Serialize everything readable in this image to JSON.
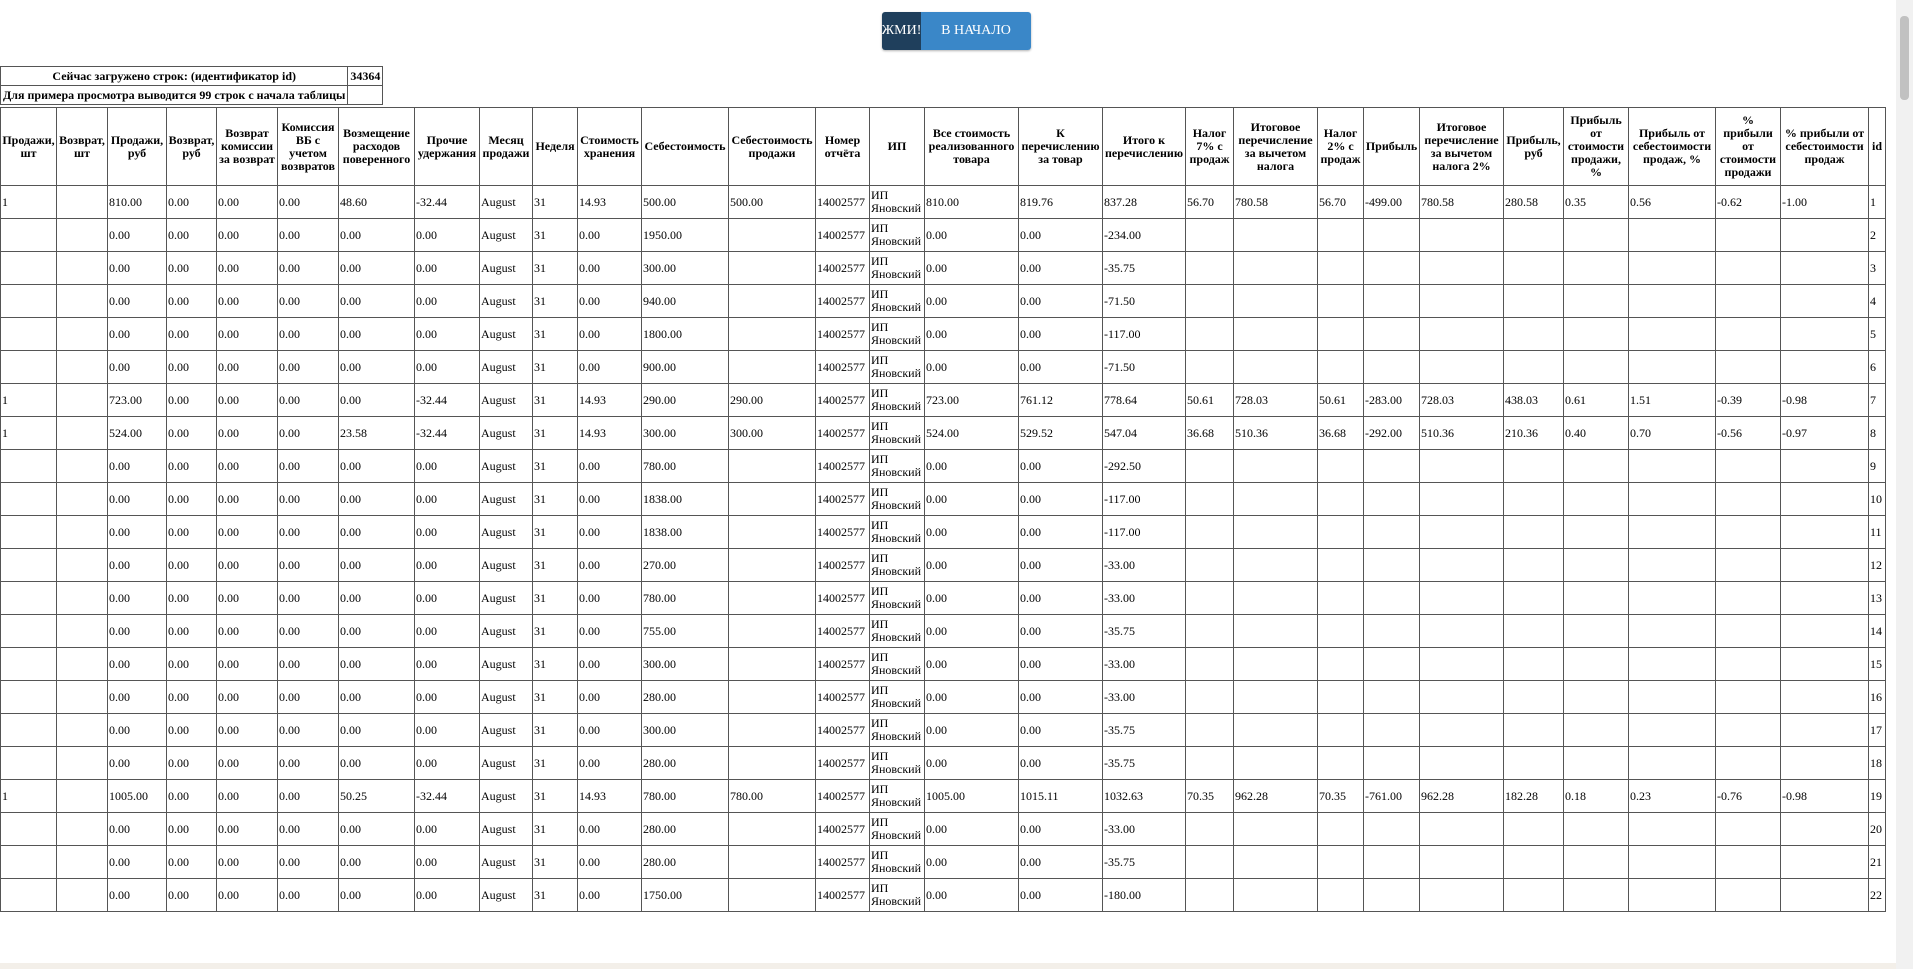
{
  "buttons": {
    "push": "ЖМИ!",
    "home": "В НАЧАЛО"
  },
  "info": {
    "loaded_label": "Сейчас загружено строк: (идентификатор id)",
    "loaded_value": "34364",
    "preview_label": "Для примера просмотра выводится 99 строк с начала таблицы"
  },
  "table": {
    "headers": [
      "Продажи, шт",
      "Возврат, шт",
      "Продажи, руб",
      "Возврат, руб",
      "Возврат комиссии за возврат",
      "Комиссия ВБ с учетом возвратов",
      "Возмещение расходов поверенного",
      "Прочие удержания",
      "Месяц продажи",
      "Неделя",
      "Стоимость хранения",
      "Себестоимость",
      "Себестоимость продажи",
      "Номер отчёта",
      "ИП",
      "Все стоимость реализованного товара",
      "К перечислению за товар",
      "Итого к перечислению",
      "Налог 7% с продаж",
      "Итоговое перечисление за вычетом налога",
      "Налог 2% с продаж",
      "Прибыль",
      "Итоговое перечисление за вычетом налога 2%",
      "Прибыль, руб",
      "Прибыль от стоимости продажи, %",
      "Прибыль от себестоимости продаж, %",
      "% прибыли от стоимости продажи",
      "% прибыли от себестоимости продаж",
      "id"
    ],
    "rows": [
      [
        "1",
        null,
        "810.00",
        "0.00",
        "0.00",
        "0.00",
        "48.60",
        "-32.44",
        "August",
        "31",
        "14.93",
        "500.00",
        "500.00",
        "14002577",
        "ИП Яновский",
        "810.00",
        "819.76",
        "837.28",
        "56.70",
        "780.58",
        "56.70",
        "-499.00",
        "780.58",
        "280.58",
        "0.35",
        "0.56",
        "-0.62",
        "-1.00",
        "1"
      ],
      [
        null,
        null,
        "0.00",
        "0.00",
        "0.00",
        "0.00",
        "0.00",
        "0.00",
        "August",
        "31",
        "0.00",
        "1950.00",
        null,
        "14002577",
        "ИП Яновский",
        "0.00",
        "0.00",
        "-234.00",
        null,
        null,
        null,
        null,
        null,
        null,
        null,
        null,
        null,
        null,
        "2"
      ],
      [
        null,
        null,
        "0.00",
        "0.00",
        "0.00",
        "0.00",
        "0.00",
        "0.00",
        "August",
        "31",
        "0.00",
        "300.00",
        null,
        "14002577",
        "ИП Яновский",
        "0.00",
        "0.00",
        "-35.75",
        null,
        null,
        null,
        null,
        null,
        null,
        null,
        null,
        null,
        null,
        "3"
      ],
      [
        null,
        null,
        "0.00",
        "0.00",
        "0.00",
        "0.00",
        "0.00",
        "0.00",
        "August",
        "31",
        "0.00",
        "940.00",
        null,
        "14002577",
        "ИП Яновский",
        "0.00",
        "0.00",
        "-71.50",
        null,
        null,
        null,
        null,
        null,
        null,
        null,
        null,
        null,
        null,
        "4"
      ],
      [
        null,
        null,
        "0.00",
        "0.00",
        "0.00",
        "0.00",
        "0.00",
        "0.00",
        "August",
        "31",
        "0.00",
        "1800.00",
        null,
        "14002577",
        "ИП Яновский",
        "0.00",
        "0.00",
        "-117.00",
        null,
        null,
        null,
        null,
        null,
        null,
        null,
        null,
        null,
        null,
        "5"
      ],
      [
        null,
        null,
        "0.00",
        "0.00",
        "0.00",
        "0.00",
        "0.00",
        "0.00",
        "August",
        "31",
        "0.00",
        "900.00",
        null,
        "14002577",
        "ИП Яновский",
        "0.00",
        "0.00",
        "-71.50",
        null,
        null,
        null,
        null,
        null,
        null,
        null,
        null,
        null,
        null,
        "6"
      ],
      [
        "1",
        null,
        "723.00",
        "0.00",
        "0.00",
        "0.00",
        "0.00",
        "-32.44",
        "August",
        "31",
        "14.93",
        "290.00",
        "290.00",
        "14002577",
        "ИП Яновский",
        "723.00",
        "761.12",
        "778.64",
        "50.61",
        "728.03",
        "50.61",
        "-283.00",
        "728.03",
        "438.03",
        "0.61",
        "1.51",
        "-0.39",
        "-0.98",
        "7"
      ],
      [
        "1",
        null,
        "524.00",
        "0.00",
        "0.00",
        "0.00",
        "23.58",
        "-32.44",
        "August",
        "31",
        "14.93",
        "300.00",
        "300.00",
        "14002577",
        "ИП Яновский",
        "524.00",
        "529.52",
        "547.04",
        "36.68",
        "510.36",
        "36.68",
        "-292.00",
        "510.36",
        "210.36",
        "0.40",
        "0.70",
        "-0.56",
        "-0.97",
        "8"
      ],
      [
        null,
        null,
        "0.00",
        "0.00",
        "0.00",
        "0.00",
        "0.00",
        "0.00",
        "August",
        "31",
        "0.00",
        "780.00",
        null,
        "14002577",
        "ИП Яновский",
        "0.00",
        "0.00",
        "-292.50",
        null,
        null,
        null,
        null,
        null,
        null,
        null,
        null,
        null,
        null,
        "9"
      ],
      [
        null,
        null,
        "0.00",
        "0.00",
        "0.00",
        "0.00",
        "0.00",
        "0.00",
        "August",
        "31",
        "0.00",
        "1838.00",
        null,
        "14002577",
        "ИП Яновский",
        "0.00",
        "0.00",
        "-117.00",
        null,
        null,
        null,
        null,
        null,
        null,
        null,
        null,
        null,
        null,
        "10"
      ],
      [
        null,
        null,
        "0.00",
        "0.00",
        "0.00",
        "0.00",
        "0.00",
        "0.00",
        "August",
        "31",
        "0.00",
        "1838.00",
        null,
        "14002577",
        "ИП Яновский",
        "0.00",
        "0.00",
        "-117.00",
        null,
        null,
        null,
        null,
        null,
        null,
        null,
        null,
        null,
        null,
        "11"
      ],
      [
        null,
        null,
        "0.00",
        "0.00",
        "0.00",
        "0.00",
        "0.00",
        "0.00",
        "August",
        "31",
        "0.00",
        "270.00",
        null,
        "14002577",
        "ИП Яновский",
        "0.00",
        "0.00",
        "-33.00",
        null,
        null,
        null,
        null,
        null,
        null,
        null,
        null,
        null,
        null,
        "12"
      ],
      [
        null,
        null,
        "0.00",
        "0.00",
        "0.00",
        "0.00",
        "0.00",
        "0.00",
        "August",
        "31",
        "0.00",
        "780.00",
        null,
        "14002577",
        "ИП Яновский",
        "0.00",
        "0.00",
        "-33.00",
        null,
        null,
        null,
        null,
        null,
        null,
        null,
        null,
        null,
        null,
        "13"
      ],
      [
        null,
        null,
        "0.00",
        "0.00",
        "0.00",
        "0.00",
        "0.00",
        "0.00",
        "August",
        "31",
        "0.00",
        "755.00",
        null,
        "14002577",
        "ИП Яновский",
        "0.00",
        "0.00",
        "-35.75",
        null,
        null,
        null,
        null,
        null,
        null,
        null,
        null,
        null,
        null,
        "14"
      ],
      [
        null,
        null,
        "0.00",
        "0.00",
        "0.00",
        "0.00",
        "0.00",
        "0.00",
        "August",
        "31",
        "0.00",
        "300.00",
        null,
        "14002577",
        "ИП Яновский",
        "0.00",
        "0.00",
        "-33.00",
        null,
        null,
        null,
        null,
        null,
        null,
        null,
        null,
        null,
        null,
        "15"
      ],
      [
        null,
        null,
        "0.00",
        "0.00",
        "0.00",
        "0.00",
        "0.00",
        "0.00",
        "August",
        "31",
        "0.00",
        "280.00",
        null,
        "14002577",
        "ИП Яновский",
        "0.00",
        "0.00",
        "-33.00",
        null,
        null,
        null,
        null,
        null,
        null,
        null,
        null,
        null,
        null,
        "16"
      ],
      [
        null,
        null,
        "0.00",
        "0.00",
        "0.00",
        "0.00",
        "0.00",
        "0.00",
        "August",
        "31",
        "0.00",
        "300.00",
        null,
        "14002577",
        "ИП Яновский",
        "0.00",
        "0.00",
        "-35.75",
        null,
        null,
        null,
        null,
        null,
        null,
        null,
        null,
        null,
        null,
        "17"
      ],
      [
        null,
        null,
        "0.00",
        "0.00",
        "0.00",
        "0.00",
        "0.00",
        "0.00",
        "August",
        "31",
        "0.00",
        "280.00",
        null,
        "14002577",
        "ИП Яновский",
        "0.00",
        "0.00",
        "-35.75",
        null,
        null,
        null,
        null,
        null,
        null,
        null,
        null,
        null,
        null,
        "18"
      ],
      [
        "1",
        null,
        "1005.00",
        "0.00",
        "0.00",
        "0.00",
        "50.25",
        "-32.44",
        "August",
        "31",
        "14.93",
        "780.00",
        "780.00",
        "14002577",
        "ИП Яновский",
        "1005.00",
        "1015.11",
        "1032.63",
        "70.35",
        "962.28",
        "70.35",
        "-761.00",
        "962.28",
        "182.28",
        "0.18",
        "0.23",
        "-0.76",
        "-0.98",
        "19"
      ],
      [
        null,
        null,
        "0.00",
        "0.00",
        "0.00",
        "0.00",
        "0.00",
        "0.00",
        "August",
        "31",
        "0.00",
        "280.00",
        null,
        "14002577",
        "ИП Яновский",
        "0.00",
        "0.00",
        "-33.00",
        null,
        null,
        null,
        null,
        null,
        null,
        null,
        null,
        null,
        null,
        "20"
      ],
      [
        null,
        null,
        "0.00",
        "0.00",
        "0.00",
        "0.00",
        "0.00",
        "0.00",
        "August",
        "31",
        "0.00",
        "280.00",
        null,
        "14002577",
        "ИП Яновский",
        "0.00",
        "0.00",
        "-35.75",
        null,
        null,
        null,
        null,
        null,
        null,
        null,
        null,
        null,
        null,
        "21"
      ],
      [
        null,
        null,
        "0.00",
        "0.00",
        "0.00",
        "0.00",
        "0.00",
        "0.00",
        "August",
        "31",
        "0.00",
        "1750.00",
        null,
        "14002577",
        "ИП Яновский",
        "0.00",
        "0.00",
        "-180.00",
        null,
        null,
        null,
        null,
        null,
        null,
        null,
        null,
        null,
        null,
        "22"
      ]
    ]
  }
}
